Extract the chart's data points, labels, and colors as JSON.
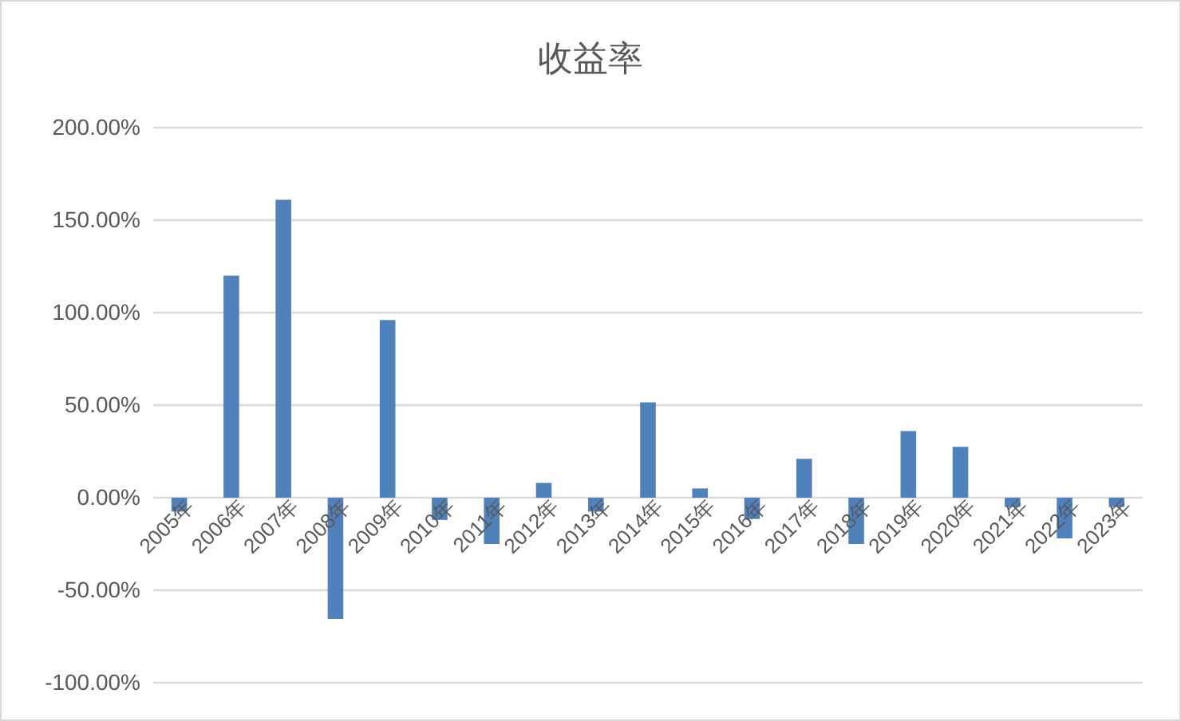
{
  "chart_data": {
    "type": "bar",
    "title": "收益率",
    "categories": [
      "2005年",
      "2006年",
      "2007年",
      "2008年",
      "2009年",
      "2010年",
      "2011年",
      "2012年",
      "2013年",
      "2014年",
      "2015年",
      "2016年",
      "2017年",
      "2018年",
      "2019年",
      "2020年",
      "2021年",
      "2022年",
      "2023年"
    ],
    "values": [
      -7.5,
      120,
      161,
      -65.5,
      96,
      -12,
      -25,
      8,
      -7.5,
      51.5,
      5,
      -11.5,
      21,
      -25,
      36,
      27.5,
      -5,
      -22,
      -5
    ],
    "color": "#4f81bd",
    "ylim": [
      -100,
      200
    ],
    "yticks": [
      {
        "value": -100,
        "label": "-100.00%"
      },
      {
        "value": -50,
        "label": "-50.00%"
      },
      {
        "value": 0,
        "label": "0.00%"
      },
      {
        "value": 50,
        "label": "50.00%"
      },
      {
        "value": 100,
        "label": "100.00%"
      },
      {
        "value": 150,
        "label": "150.00%"
      },
      {
        "value": 200,
        "label": "200.00%"
      }
    ],
    "grid": "y"
  }
}
